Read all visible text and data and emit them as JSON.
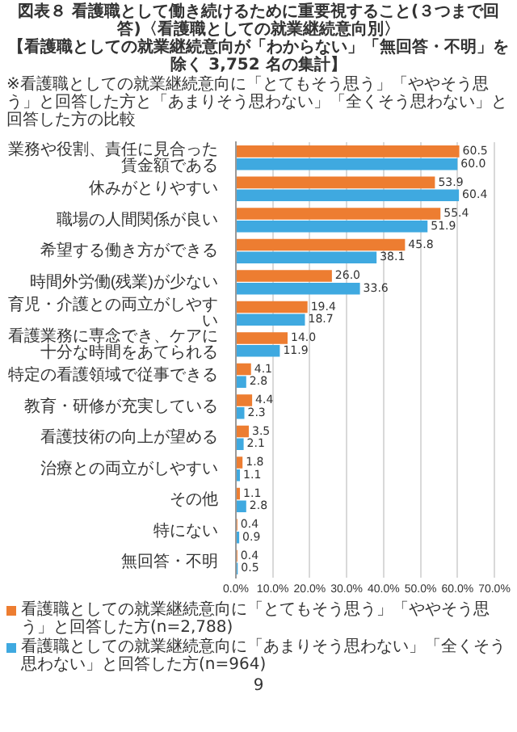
{
  "chart_data": {
    "type": "bar",
    "orientation": "horizontal",
    "title": "図表８ 看護職として働き続けるために重要視すること(３つまで回答)〈看護職としての就業継続意向別〉",
    "subtitle": "【看護職としての就業継続意向が「わからない」「無回答・不明」を除く 3,752 名の集計】",
    "annotations": [
      "※看護職としての就業継続意向に「とてもそう思う」「ややそう思う」と回答した方と「あまりそう思わない」「全くそう思わない」と回答した方の比較",
      "9"
    ],
    "categories": [
      "業務や役割、責任に見合った賃金額である",
      "休みがとりやすい",
      "職場の人間関係が良い",
      "希望する働き方ができる",
      "時間外労働(残業)が少ない",
      "育児・介護との両立がしやすい",
      "看護業務に専念でき、ケアに十分な時間をあてられる",
      "特定の看護領域で従事できる",
      "教育・研修が充実している",
      "看護技術の向上が望める",
      "治療との両立がしやすい",
      "その他",
      "特にない",
      "無回答・不明"
    ],
    "series": [
      {
        "name": "看護職としての就業継続意向に「とてもそう思う」「ややそう思う」と回答した方(n=2,788)",
        "color": "#ed7d31",
        "values": [
          60.5,
          53.9,
          55.4,
          45.8,
          26.0,
          19.4,
          14.0,
          4.1,
          4.4,
          3.5,
          1.8,
          1.1,
          0.4,
          0.4
        ],
        "value_labels": [
          "60.5",
          "53.9",
          "55.4",
          "45.8",
          "26.0",
          "19.4",
          "14.0",
          "4.1",
          "4.4",
          "3.5",
          "1.8",
          "1.1",
          "0.4",
          "0.4"
        ]
      },
      {
        "name": "看護職としての就業継続意向に「あまりそう思わない」「全くそう思わない」と回答した方(n=964)",
        "color": "#3fa9e0",
        "values": [
          60.0,
          60.4,
          51.9,
          38.1,
          33.6,
          18.7,
          11.9,
          2.8,
          2.3,
          2.1,
          1.1,
          2.8,
          0.9,
          0.5
        ],
        "value_labels": [
          "60.0",
          "60.4",
          "51.9",
          "38.1",
          "33.6",
          "18.7",
          "11.9",
          "2.8",
          "2.3",
          "2.1",
          "1.1",
          "2.8",
          "0.9",
          "0.5"
        ]
      }
    ],
    "xlim": [
      0,
      70
    ],
    "xticks": [
      {
        "value": 0,
        "label": "0.0%"
      },
      {
        "value": 10,
        "label": "10.0%"
      },
      {
        "value": 20,
        "label": "20.0%"
      },
      {
        "value": 30,
        "label": "30.0%"
      },
      {
        "value": 40,
        "label": "40.0%"
      },
      {
        "value": 50,
        "label": "50.0%"
      },
      {
        "value": 60,
        "label": "60.0%"
      },
      {
        "value": 70,
        "label": "70.0%"
      }
    ],
    "grid": "x",
    "legend": "bottom"
  }
}
